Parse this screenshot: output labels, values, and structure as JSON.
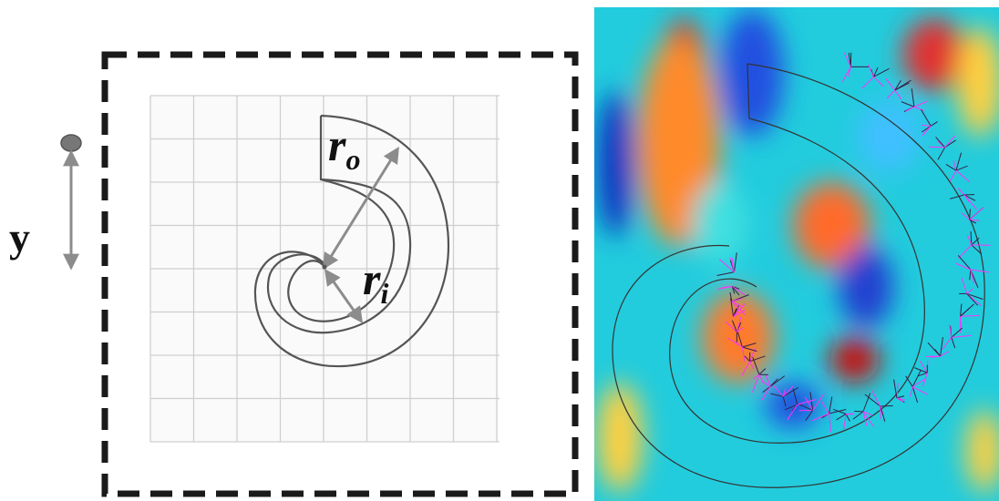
{
  "labels": {
    "axis": "y",
    "outer_radius": "r",
    "outer_sub": "o",
    "inner_radius": "r",
    "inner_sub": "i"
  },
  "colors": {
    "frame": "#1a1a1a",
    "grid": "#cfcfcf",
    "shell": "#555555",
    "arrow": "#8c8c8c",
    "field_vectors": "#ff33ff"
  },
  "panels": {
    "left": "schematic",
    "right": "field-map"
  }
}
